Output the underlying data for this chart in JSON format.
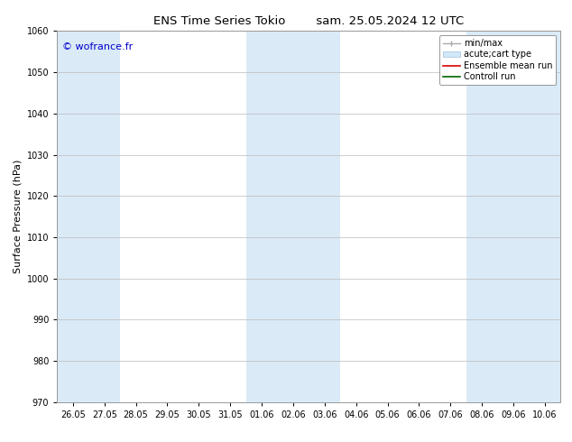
{
  "title_left": "ENS Time Series Tokio",
  "title_right": "sam. 25.05.2024 12 UTC",
  "ylabel": "Surface Pressure (hPa)",
  "watermark": "© wofrance.fr",
  "watermark_color": "#0000cc",
  "ylim": [
    970,
    1060
  ],
  "yticks": [
    970,
    980,
    990,
    1000,
    1010,
    1020,
    1030,
    1040,
    1050,
    1060
  ],
  "x_labels": [
    "26.05",
    "27.05",
    "28.05",
    "29.05",
    "30.05",
    "31.05",
    "01.06",
    "02.06",
    "03.06",
    "04.06",
    "05.06",
    "06.06",
    "07.06",
    "08.06",
    "09.06",
    "10.06"
  ],
  "shade_ranges": [
    [
      0,
      1
    ],
    [
      6,
      8
    ],
    [
      13,
      15
    ]
  ],
  "shade_color": "#daeaf7",
  "background_color": "#ffffff",
  "plot_bg_color": "#ffffff",
  "grid_color": "#bbbbbb",
  "font_family": "DejaVu Sans",
  "title_fontsize": 9.5,
  "tick_fontsize": 7,
  "ylabel_fontsize": 8,
  "watermark_fontsize": 8,
  "legend_fontsize": 7
}
